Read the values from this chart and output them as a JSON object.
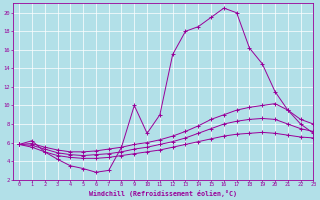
{
  "xlabel": "Windchill (Refroidissement éolien,°C)",
  "background_color": "#b2e0e8",
  "line_color": "#990099",
  "grid_color": "#ffffff",
  "xlim": [
    -0.5,
    23
  ],
  "ylim": [
    2,
    21
  ],
  "yticks": [
    2,
    4,
    6,
    8,
    10,
    12,
    14,
    16,
    18,
    20
  ],
  "xticks": [
    0,
    1,
    2,
    3,
    4,
    5,
    6,
    7,
    8,
    9,
    10,
    11,
    12,
    13,
    14,
    15,
    16,
    17,
    18,
    19,
    20,
    21,
    22,
    23
  ],
  "series1": [
    [
      0,
      5.8
    ],
    [
      1,
      6.2
    ],
    [
      2,
      5.0
    ],
    [
      3,
      4.2
    ],
    [
      4,
      3.5
    ],
    [
      5,
      3.2
    ],
    [
      6,
      2.8
    ],
    [
      7,
      3.0
    ],
    [
      8,
      5.5
    ],
    [
      9,
      10.0
    ],
    [
      10,
      7.0
    ],
    [
      11,
      9.0
    ],
    [
      12,
      15.5
    ],
    [
      13,
      18.0
    ],
    [
      14,
      18.5
    ],
    [
      15,
      19.5
    ],
    [
      16,
      20.5
    ],
    [
      17,
      20.0
    ],
    [
      18,
      16.2
    ],
    [
      19,
      14.5
    ],
    [
      20,
      11.5
    ],
    [
      21,
      9.5
    ],
    [
      22,
      8.0
    ],
    [
      23,
      7.0
    ]
  ],
  "series2": [
    [
      0,
      5.8
    ],
    [
      1,
      5.9
    ],
    [
      2,
      5.5
    ],
    [
      3,
      5.2
    ],
    [
      4,
      5.0
    ],
    [
      5,
      5.0
    ],
    [
      6,
      5.1
    ],
    [
      7,
      5.3
    ],
    [
      8,
      5.5
    ],
    [
      9,
      5.8
    ],
    [
      10,
      6.0
    ],
    [
      11,
      6.3
    ],
    [
      12,
      6.7
    ],
    [
      13,
      7.2
    ],
    [
      14,
      7.8
    ],
    [
      15,
      8.5
    ],
    [
      16,
      9.0
    ],
    [
      17,
      9.5
    ],
    [
      18,
      9.8
    ],
    [
      19,
      10.0
    ],
    [
      20,
      10.2
    ],
    [
      21,
      9.5
    ],
    [
      22,
      8.5
    ],
    [
      23,
      8.0
    ]
  ],
  "series3": [
    [
      0,
      5.8
    ],
    [
      1,
      5.7
    ],
    [
      2,
      5.3
    ],
    [
      3,
      4.9
    ],
    [
      4,
      4.7
    ],
    [
      5,
      4.6
    ],
    [
      6,
      4.7
    ],
    [
      7,
      4.8
    ],
    [
      8,
      5.0
    ],
    [
      9,
      5.3
    ],
    [
      10,
      5.5
    ],
    [
      11,
      5.8
    ],
    [
      12,
      6.1
    ],
    [
      13,
      6.5
    ],
    [
      14,
      7.0
    ],
    [
      15,
      7.5
    ],
    [
      16,
      8.0
    ],
    [
      17,
      8.3
    ],
    [
      18,
      8.5
    ],
    [
      19,
      8.6
    ],
    [
      20,
      8.5
    ],
    [
      21,
      8.0
    ],
    [
      22,
      7.5
    ],
    [
      23,
      7.2
    ]
  ],
  "series4": [
    [
      0,
      5.8
    ],
    [
      1,
      5.5
    ],
    [
      2,
      5.0
    ],
    [
      3,
      4.6
    ],
    [
      4,
      4.4
    ],
    [
      5,
      4.3
    ],
    [
      6,
      4.3
    ],
    [
      7,
      4.4
    ],
    [
      8,
      4.6
    ],
    [
      9,
      4.8
    ],
    [
      10,
      5.0
    ],
    [
      11,
      5.2
    ],
    [
      12,
      5.5
    ],
    [
      13,
      5.8
    ],
    [
      14,
      6.1
    ],
    [
      15,
      6.4
    ],
    [
      16,
      6.7
    ],
    [
      17,
      6.9
    ],
    [
      18,
      7.0
    ],
    [
      19,
      7.1
    ],
    [
      20,
      7.0
    ],
    [
      21,
      6.8
    ],
    [
      22,
      6.6
    ],
    [
      23,
      6.5
    ]
  ]
}
